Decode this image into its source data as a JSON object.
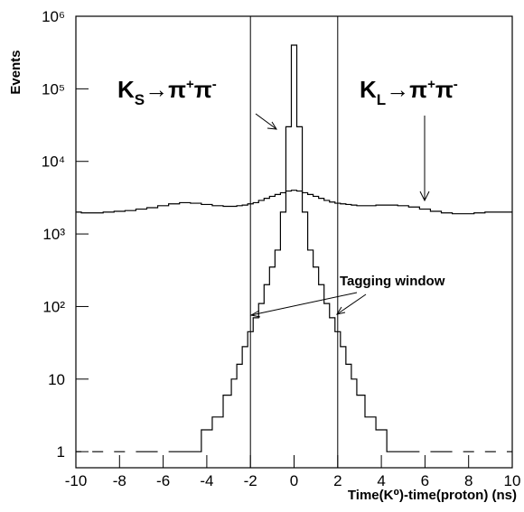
{
  "chart_data": {
    "type": "line",
    "log_y": true,
    "xlabel": "Time(K⁰)-time(proton) (ns)",
    "ylabel": "Events",
    "xlim": [
      -10,
      10
    ],
    "ylim": [
      0.6,
      1000000
    ],
    "xticks": [
      -10,
      -8,
      -6,
      -4,
      -2,
      0,
      2,
      4,
      6,
      8,
      10
    ],
    "yticks": [
      1,
      10,
      {
        "value": 100,
        "label": "10²"
      },
      {
        "value": 1000,
        "label": "10³"
      },
      {
        "value": 10000,
        "label": "10⁴"
      },
      {
        "value": 100000,
        "label": "10⁵"
      },
      {
        "value": 1000000,
        "label": "10⁶"
      }
    ],
    "vlines": [
      -2,
      2
    ],
    "x": [
      -10,
      -9.5,
      -9,
      -8.5,
      -8,
      -7.5,
      -7,
      -6.5,
      -6,
      -5.5,
      -5,
      -4.5,
      -4,
      -3.5,
      -3,
      -2.75,
      -2.5,
      -2.25,
      -2,
      -1.75,
      -1.5,
      -1.25,
      -1,
      -0.75,
      -0.5,
      -0.25,
      0,
      0.25,
      0.5,
      0.75,
      1,
      1.25,
      1.5,
      1.75,
      2,
      2.25,
      2.5,
      2.75,
      3,
      3.5,
      4,
      4.5,
      5,
      5.5,
      6,
      6.5,
      7,
      7.5,
      8,
      8.5,
      9,
      9.5,
      10
    ],
    "series": [
      {
        "color": "#000000",
        "values": [
          1,
          null,
          1,
          null,
          1,
          null,
          1,
          1,
          null,
          1,
          1,
          1,
          2,
          3,
          6,
          10,
          16,
          28,
          45,
          70,
          110,
          200,
          350,
          600,
          2000,
          30000,
          400000,
          30000,
          2000,
          600,
          350,
          200,
          110,
          70,
          45,
          28,
          16,
          10,
          6,
          3,
          2,
          1,
          1,
          1,
          null,
          1,
          1,
          null,
          1,
          null,
          1,
          null,
          1
        ]
      },
      {
        "color": "#000000",
        "values": [
          2000,
          1950,
          1950,
          2000,
          2050,
          2100,
          2200,
          2300,
          2450,
          2600,
          2700,
          2650,
          2550,
          2450,
          2400,
          2400,
          2450,
          2500,
          2600,
          2700,
          2900,
          3100,
          3300,
          3500,
          3700,
          3900,
          4000,
          3900,
          3700,
          3500,
          3300,
          3100,
          2900,
          2750,
          2650,
          2600,
          2550,
          2500,
          2450,
          2450,
          2500,
          2500,
          2450,
          2350,
          2200,
          2050,
          1950,
          1900,
          1900,
          1950,
          2000,
          2000,
          2000
        ]
      }
    ],
    "annotations": [
      {
        "parts": [
          "K",
          "S",
          "→π",
          "+",
          "π",
          "-"
        ]
      },
      {
        "parts": [
          "K",
          "L",
          "→π",
          "+",
          "π",
          "-"
        ]
      },
      {
        "text": "Tagging window"
      }
    ]
  }
}
